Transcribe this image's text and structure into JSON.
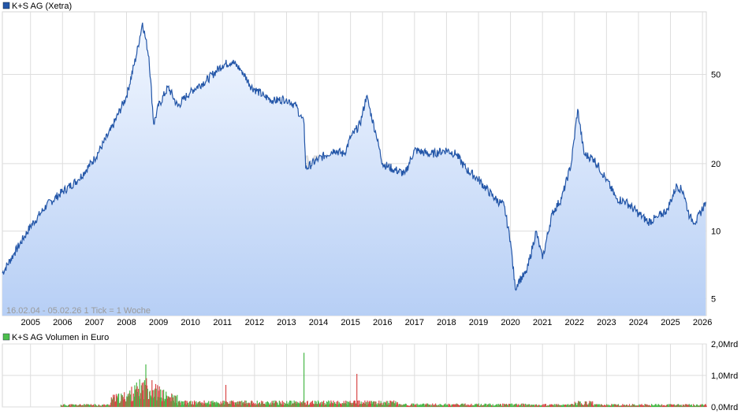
{
  "chart_data": [
    {
      "type": "line",
      "title": "K+S AG (Xetra)",
      "series_color": "#2356a8",
      "fill_color": "#b7cff5",
      "scale": "log",
      "ylim": [
        4.2,
        95
      ],
      "xlim": [
        2004.12,
        2026.12
      ],
      "y_ticks": [
        5,
        10,
        20,
        50
      ],
      "x_ticks": [
        2005,
        2006,
        2007,
        2008,
        2009,
        2010,
        2011,
        2012,
        2013,
        2014,
        2015,
        2016,
        2017,
        2018,
        2019,
        2020,
        2021,
        2022,
        2023,
        2024,
        2025,
        2026
      ],
      "range_label": "16.02.04 - 05.02.26    1 Tick = 1 Woche",
      "grid": true,
      "x": [
        2004.12,
        2004.5,
        2005.0,
        2005.5,
        2006.0,
        2006.5,
        2007.0,
        2007.5,
        2008.0,
        2008.3,
        2008.5,
        2008.7,
        2008.85,
        2009.0,
        2009.3,
        2009.6,
        2010.0,
        2010.5,
        2011.0,
        2011.3,
        2011.6,
        2011.9,
        2012.3,
        2012.6,
        2013.0,
        2013.3,
        2013.55,
        2013.6,
        2014.0,
        2014.5,
        2014.8,
        2015.0,
        2015.3,
        2015.5,
        2015.8,
        2016.0,
        2016.3,
        2016.7,
        2017.0,
        2017.5,
        2018.0,
        2018.3,
        2018.6,
        2019.0,
        2019.5,
        2019.8,
        2020.0,
        2020.15,
        2020.25,
        2020.5,
        2020.8,
        2021.0,
        2021.3,
        2021.6,
        2021.9,
        2022.1,
        2022.3,
        2022.6,
        2023.0,
        2023.3,
        2023.6,
        2024.0,
        2024.3,
        2024.6,
        2024.9,
        2025.2,
        2025.4,
        2025.6,
        2025.8,
        2026.1
      ],
      "values": [
        6.5,
        8.0,
        10.5,
        13.0,
        15.0,
        17.0,
        21.0,
        28.0,
        40.0,
        60.0,
        85.0,
        60.0,
        30.0,
        36.0,
        44.0,
        36.0,
        42.0,
        47.0,
        55.0,
        57.0,
        52.0,
        44.0,
        40.0,
        38.0,
        39.0,
        36.0,
        30.0,
        19.0,
        21.0,
        23.0,
        22.0,
        26.0,
        30.0,
        40.0,
        27.0,
        20.0,
        19.0,
        18.0,
        23.0,
        22.0,
        23.0,
        22.0,
        19.0,
        17.0,
        14.0,
        13.0,
        9.0,
        5.5,
        6.0,
        6.5,
        10.0,
        7.5,
        12.0,
        14.0,
        20.0,
        35.0,
        22.0,
        21.0,
        17.0,
        14.0,
        13.5,
        12.0,
        11.0,
        11.5,
        12.5,
        16.0,
        15.0,
        11.5,
        11.0,
        13.5
      ]
    },
    {
      "type": "bar",
      "title": "K+S AG Volumen in Euro",
      "series_color_up": "#48b848",
      "series_color_down": "#d94848",
      "legend_color": "#4cbf4c",
      "ylim": [
        0,
        2.0
      ],
      "y_ticks": [
        0,
        1.0,
        2.0
      ],
      "y_tick_labels": [
        "0,0Mrd",
        "1,0Mrd",
        "2,0Mrd"
      ],
      "x": [
        2008.6,
        2013.55,
        2015.2,
        2008.8,
        2011.1
      ],
      "values": [
        1.35,
        1.72,
        1.05,
        0.85,
        0.7
      ]
    }
  ]
}
